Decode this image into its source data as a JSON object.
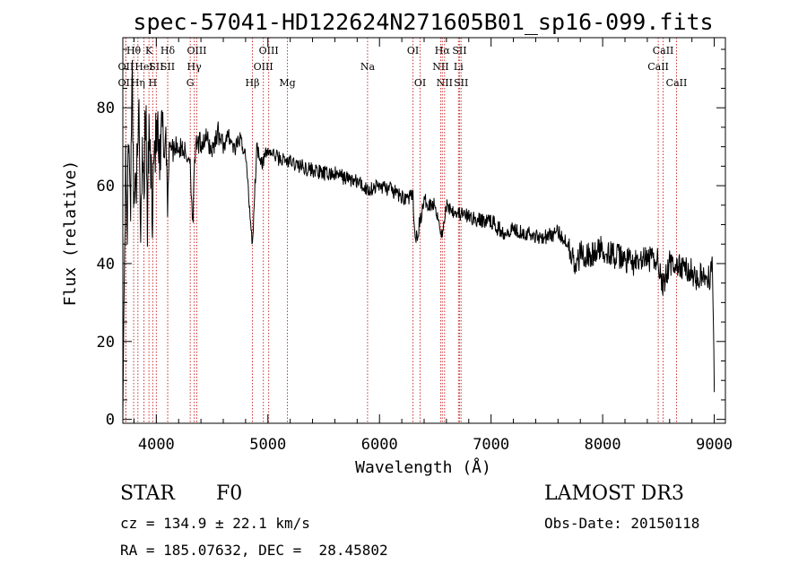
{
  "chart_data": {
    "type": "line",
    "title": "spec-57041-HD122624N271605B01_sp16-099.fits",
    "xlabel": "Wavelength (Å)",
    "ylabel": "Flux (relative)",
    "xlim": [
      3700,
      9100
    ],
    "ylim": [
      -1,
      98
    ],
    "xticks": [
      4000,
      5000,
      6000,
      7000,
      8000,
      9000
    ],
    "yticks": [
      0,
      20,
      40,
      60,
      80
    ],
    "series": [
      {
        "name": "spectrum",
        "x": [
          3700,
          3712,
          3725,
          3740,
          3755,
          3770,
          3785,
          3800,
          3815,
          3830,
          3845,
          3860,
          3875,
          3890,
          3905,
          3920,
          3935,
          3950,
          3965,
          3980,
          3995,
          4010,
          4030,
          4050,
          4070,
          4090,
          4101,
          4120,
          4150,
          4180,
          4210,
          4240,
          4270,
          4300,
          4330,
          4340,
          4360,
          4400,
          4450,
          4500,
          4550,
          4600,
          4650,
          4700,
          4750,
          4800,
          4861,
          4900,
          4950,
          5000,
          5100,
          5200,
          5300,
          5400,
          5500,
          5600,
          5700,
          5800,
          5893,
          6000,
          6100,
          6200,
          6300,
          6320,
          6400,
          6500,
          6563,
          6600,
          6650,
          6700,
          6800,
          6900,
          7000,
          7100,
          7200,
          7300,
          7400,
          7500,
          7600,
          7700,
          7760,
          7800,
          7900,
          8000,
          8100,
          8200,
          8300,
          8400,
          8500,
          8540,
          8600,
          8700,
          8800,
          8850,
          8900,
          8950,
          8985,
          9000
        ],
        "y": [
          0,
          38,
          62,
          52,
          75,
          58,
          88,
          52,
          68,
          60,
          80,
          48,
          72,
          62,
          79,
          50,
          75,
          65,
          55,
          72,
          70,
          74,
          62,
          75,
          70,
          73,
          55,
          72,
          69,
          71,
          69,
          70,
          67,
          68,
          48,
          66,
          70,
          71,
          72,
          69,
          74,
          70,
          73,
          69,
          72,
          68,
          45,
          70,
          66,
          69,
          67,
          66,
          65,
          64,
          63,
          63,
          62,
          61,
          59,
          60,
          59,
          57,
          57,
          45,
          56,
          55,
          47,
          55,
          54,
          53,
          52,
          51,
          51,
          48,
          49,
          48,
          47,
          47,
          48,
          45,
          38,
          43,
          42,
          44,
          42,
          41,
          40,
          41,
          41,
          34,
          40,
          39,
          38,
          36,
          37,
          36,
          39,
          7
        ]
      }
    ],
    "spectral_lines": [
      {
        "wl": 3727,
        "label": "OII",
        "row": 3
      },
      {
        "wl": 3727,
        "label": "OII",
        "row": 2
      },
      {
        "wl": 3797,
        "label": "Hθ",
        "row": 1
      },
      {
        "wl": 3835,
        "label": "Hη",
        "row": 3
      },
      {
        "wl": 3889,
        "label": "HeI",
        "row": 2
      },
      {
        "wl": 3934,
        "label": "K",
        "row": 1
      },
      {
        "wl": 3968,
        "label": "H",
        "row": 3
      },
      {
        "wl": 4000,
        "label": "SII",
        "row": 2
      },
      {
        "wl": 4102,
        "label": "Hδ",
        "row": 1
      },
      {
        "wl": 4102,
        "label": "SII",
        "row": 2
      },
      {
        "wl": 4304,
        "label": "G",
        "row": 3
      },
      {
        "wl": 4340,
        "label": "Hγ",
        "row": 2
      },
      {
        "wl": 4363,
        "label": "OIII",
        "row": 1
      },
      {
        "wl": 4861,
        "label": "Hβ",
        "row": 3
      },
      {
        "wl": 4959,
        "label": "OIII",
        "row": 2
      },
      {
        "wl": 5007,
        "label": "OIII",
        "row": 1
      },
      {
        "wl": 5175,
        "label": "Mg",
        "row": 3
      },
      {
        "wl": 5893,
        "label": "Na",
        "row": 2
      },
      {
        "wl": 6300,
        "label": "OI",
        "row": 1
      },
      {
        "wl": 6364,
        "label": "OI",
        "row": 3
      },
      {
        "wl": 6548,
        "label": "NII",
        "row": 2
      },
      {
        "wl": 6563,
        "label": "Hα",
        "row": 1
      },
      {
        "wl": 6583,
        "label": "NII",
        "row": 3
      },
      {
        "wl": 6708,
        "label": "Li",
        "row": 2
      },
      {
        "wl": 6717,
        "label": "SII",
        "row": 1
      },
      {
        "wl": 6731,
        "label": "SII",
        "row": 3
      },
      {
        "wl": 8498,
        "label": "CaII",
        "row": 2
      },
      {
        "wl": 8542,
        "label": "CaII",
        "row": 1
      },
      {
        "wl": 8662,
        "label": "CaII",
        "row": 3
      }
    ]
  },
  "info": {
    "object_class": "STAR",
    "subclass": "F0",
    "survey": "LAMOST DR3",
    "cz": "cz = 134.9 ± 22.1 km/s",
    "obs_date": "Obs-Date: 20150118",
    "coords": "RA = 185.07632, DEC =  28.45802"
  },
  "colors": {
    "line_marker": "#cc3333",
    "spectrum": "#000000",
    "axes": "#000000"
  }
}
